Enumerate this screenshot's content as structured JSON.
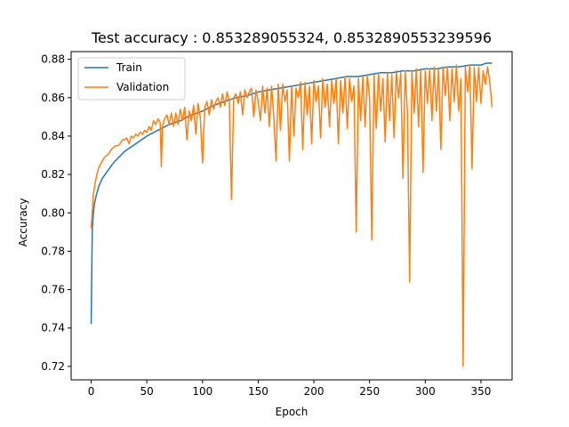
{
  "chart_data": {
    "type": "line",
    "title": "Test accuracy : 0.853289055324, 0.8532890553239596",
    "xlabel": "Epoch",
    "ylabel": "Accuracy",
    "xlim": [
      -18,
      378
    ],
    "ylim": [
      0.713,
      0.884
    ],
    "xticks": [
      0,
      50,
      100,
      150,
      200,
      250,
      300,
      350
    ],
    "yticks": [
      0.72,
      0.74,
      0.76,
      0.78,
      0.8,
      0.82,
      0.84,
      0.86,
      0.88
    ],
    "grid": false,
    "legend": "top-left",
    "series": [
      {
        "name": "Train",
        "color": "#1f77b4",
        "points": [
          [
            0,
            0.742
          ],
          [
            1,
            0.792
          ],
          [
            2,
            0.8
          ],
          [
            3,
            0.805
          ],
          [
            5,
            0.81
          ],
          [
            7,
            0.814
          ],
          [
            10,
            0.818
          ],
          [
            15,
            0.822
          ],
          [
            20,
            0.826
          ],
          [
            25,
            0.829
          ],
          [
            30,
            0.832
          ],
          [
            40,
            0.836
          ],
          [
            50,
            0.84
          ],
          [
            60,
            0.843
          ],
          [
            70,
            0.846
          ],
          [
            80,
            0.848
          ],
          [
            90,
            0.851
          ],
          [
            100,
            0.853
          ],
          [
            110,
            0.856
          ],
          [
            120,
            0.858
          ],
          [
            130,
            0.86
          ],
          [
            140,
            0.861
          ],
          [
            150,
            0.863
          ],
          [
            160,
            0.864
          ],
          [
            170,
            0.865
          ],
          [
            180,
            0.866
          ],
          [
            190,
            0.867
          ],
          [
            200,
            0.868
          ],
          [
            210,
            0.869
          ],
          [
            220,
            0.87
          ],
          [
            230,
            0.871
          ],
          [
            240,
            0.871
          ],
          [
            250,
            0.872
          ],
          [
            260,
            0.873
          ],
          [
            270,
            0.873
          ],
          [
            280,
            0.874
          ],
          [
            290,
            0.874
          ],
          [
            300,
            0.875
          ],
          [
            310,
            0.875
          ],
          [
            320,
            0.876
          ],
          [
            330,
            0.876
          ],
          [
            340,
            0.877
          ],
          [
            350,
            0.877
          ],
          [
            355,
            0.878
          ],
          [
            360,
            0.878
          ]
        ]
      },
      {
        "name": "Validation",
        "color": "#ff7f0e",
        "points": [
          [
            0,
            0.792
          ],
          [
            2,
            0.81
          ],
          [
            4,
            0.817
          ],
          [
            6,
            0.822
          ],
          [
            8,
            0.825
          ],
          [
            10,
            0.827
          ],
          [
            12,
            0.829
          ],
          [
            14,
            0.83
          ],
          [
            16,
            0.831
          ],
          [
            18,
            0.833
          ],
          [
            20,
            0.834
          ],
          [
            22,
            0.835
          ],
          [
            24,
            0.835
          ],
          [
            26,
            0.836
          ],
          [
            28,
            0.838
          ],
          [
            30,
            0.838
          ],
          [
            32,
            0.839
          ],
          [
            34,
            0.836
          ],
          [
            36,
            0.84
          ],
          [
            38,
            0.839
          ],
          [
            40,
            0.841
          ],
          [
            42,
            0.84
          ],
          [
            44,
            0.842
          ],
          [
            46,
            0.841
          ],
          [
            48,
            0.843
          ],
          [
            50,
            0.842
          ],
          [
            52,
            0.845
          ],
          [
            54,
            0.843
          ],
          [
            56,
            0.848
          ],
          [
            58,
            0.846
          ],
          [
            60,
            0.849
          ],
          [
            62,
            0.847
          ],
          [
            63,
            0.824
          ],
          [
            64,
            0.845
          ],
          [
            66,
            0.849
          ],
          [
            68,
            0.851
          ],
          [
            70,
            0.846
          ],
          [
            72,
            0.852
          ],
          [
            74,
            0.845
          ],
          [
            76,
            0.852
          ],
          [
            78,
            0.846
          ],
          [
            80,
            0.854
          ],
          [
            82,
            0.848
          ],
          [
            84,
            0.855
          ],
          [
            86,
            0.838
          ],
          [
            88,
            0.853
          ],
          [
            90,
            0.848
          ],
          [
            92,
            0.856
          ],
          [
            94,
            0.841
          ],
          [
            96,
            0.857
          ],
          [
            98,
            0.85
          ],
          [
            100,
            0.826
          ],
          [
            102,
            0.855
          ],
          [
            104,
            0.858
          ],
          [
            106,
            0.851
          ],
          [
            108,
            0.859
          ],
          [
            110,
            0.854
          ],
          [
            112,
            0.858
          ],
          [
            114,
            0.86
          ],
          [
            116,
            0.855
          ],
          [
            118,
            0.862
          ],
          [
            120,
            0.856
          ],
          [
            122,
            0.863
          ],
          [
            124,
            0.858
          ],
          [
            126,
            0.807
          ],
          [
            128,
            0.86
          ],
          [
            130,
            0.862
          ],
          [
            132,
            0.857
          ],
          [
            134,
            0.863
          ],
          [
            136,
            0.851
          ],
          [
            138,
            0.864
          ],
          [
            140,
            0.86
          ],
          [
            142,
            0.863
          ],
          [
            144,
            0.865
          ],
          [
            146,
            0.85
          ],
          [
            148,
            0.864
          ],
          [
            150,
            0.858
          ],
          [
            152,
            0.848
          ],
          [
            154,
            0.866
          ],
          [
            156,
            0.852
          ],
          [
            158,
            0.865
          ],
          [
            160,
            0.845
          ],
          [
            162,
            0.866
          ],
          [
            164,
            0.85
          ],
          [
            166,
            0.827
          ],
          [
            168,
            0.867
          ],
          [
            170,
            0.843
          ],
          [
            172,
            0.867
          ],
          [
            174,
            0.858
          ],
          [
            176,
            0.864
          ],
          [
            178,
            0.827
          ],
          [
            180,
            0.866
          ],
          [
            182,
            0.84
          ],
          [
            184,
            0.865
          ],
          [
            186,
            0.86
          ],
          [
            188,
            0.868
          ],
          [
            190,
            0.833
          ],
          [
            192,
            0.868
          ],
          [
            194,
            0.851
          ],
          [
            196,
            0.866
          ],
          [
            198,
            0.836
          ],
          [
            200,
            0.869
          ],
          [
            202,
            0.858
          ],
          [
            204,
            0.866
          ],
          [
            206,
            0.839
          ],
          [
            208,
            0.87
          ],
          [
            210,
            0.855
          ],
          [
            212,
            0.867
          ],
          [
            214,
            0.845
          ],
          [
            216,
            0.869
          ],
          [
            218,
            0.857
          ],
          [
            220,
            0.87
          ],
          [
            222,
            0.836
          ],
          [
            224,
            0.869
          ],
          [
            226,
            0.852
          ],
          [
            228,
            0.871
          ],
          [
            230,
            0.844
          ],
          [
            232,
            0.87
          ],
          [
            234,
            0.858
          ],
          [
            236,
            0.866
          ],
          [
            238,
            0.79
          ],
          [
            240,
            0.87
          ],
          [
            242,
            0.848
          ],
          [
            244,
            0.871
          ],
          [
            246,
            0.845
          ],
          [
            248,
            0.872
          ],
          [
            250,
            0.86
          ],
          [
            252,
            0.786
          ],
          [
            254,
            0.872
          ],
          [
            256,
            0.844
          ],
          [
            258,
            0.873
          ],
          [
            260,
            0.853
          ],
          [
            262,
            0.87
          ],
          [
            264,
            0.837
          ],
          [
            266,
            0.873
          ],
          [
            268,
            0.848
          ],
          [
            270,
            0.872
          ],
          [
            272,
            0.839
          ],
          [
            274,
            0.874
          ],
          [
            276,
            0.86
          ],
          [
            278,
            0.873
          ],
          [
            280,
            0.818
          ],
          [
            282,
            0.874
          ],
          [
            284,
            0.852
          ],
          [
            286,
            0.764
          ],
          [
            288,
            0.874
          ],
          [
            290,
            0.852
          ],
          [
            292,
            0.875
          ],
          [
            294,
            0.845
          ],
          [
            296,
            0.875
          ],
          [
            298,
            0.821
          ],
          [
            300,
            0.874
          ],
          [
            302,
            0.857
          ],
          [
            304,
            0.875
          ],
          [
            306,
            0.848
          ],
          [
            308,
            0.876
          ],
          [
            310,
            0.853
          ],
          [
            312,
            0.875
          ],
          [
            314,
            0.833
          ],
          [
            316,
            0.876
          ],
          [
            318,
            0.861
          ],
          [
            320,
            0.876
          ],
          [
            322,
            0.848
          ],
          [
            324,
            0.875
          ],
          [
            326,
            0.858
          ],
          [
            328,
            0.877
          ],
          [
            330,
            0.853
          ],
          [
            332,
            0.87
          ],
          [
            334,
            0.72
          ],
          [
            336,
            0.876
          ],
          [
            338,
            0.863
          ],
          [
            340,
            0.877
          ],
          [
            342,
            0.823
          ],
          [
            344,
            0.876
          ],
          [
            346,
            0.858
          ],
          [
            348,
            0.876
          ],
          [
            350,
            0.857
          ],
          [
            352,
            0.874
          ],
          [
            354,
            0.867
          ],
          [
            356,
            0.876
          ],
          [
            358,
            0.868
          ],
          [
            360,
            0.855
          ]
        ]
      }
    ]
  }
}
